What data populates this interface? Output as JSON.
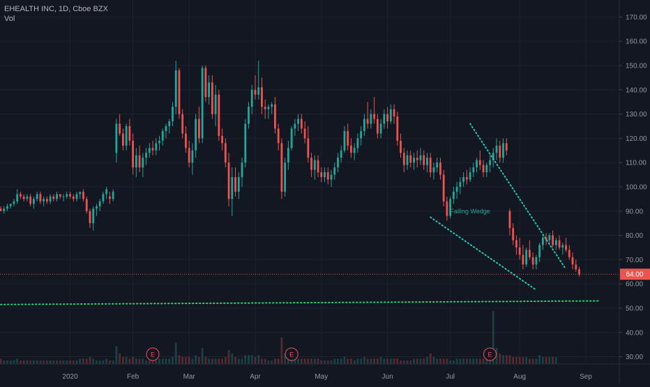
{
  "header": {
    "symbol_line": "EHEALTH INC, 1D, Cboe BZX",
    "volume_label": "Vol"
  },
  "colors": {
    "background": "#131722",
    "up": "#26a69a",
    "down": "#ef5350",
    "grid": "#1e222d",
    "support_line": "#2ecc71",
    "last_price_line": "#ef5350"
  },
  "chart_data": {
    "type": "candlestick",
    "y_axis": {
      "min": 27,
      "max": 177,
      "ticks": [
        30,
        40,
        50,
        60,
        70,
        80,
        90,
        100,
        110,
        120,
        130,
        140,
        150,
        160,
        170
      ],
      "suffix": ".00"
    },
    "x_axis": {
      "labels": [
        "2020",
        "Feb",
        "Mar",
        "Apr",
        "May",
        "Jun",
        "Jul",
        "Aug",
        "Sep"
      ],
      "label_day_index": [
        21,
        40,
        57,
        77,
        97,
        117,
        136,
        157,
        177
      ]
    },
    "candles": [
      [
        91,
        92,
        90,
        90
      ],
      [
        90,
        92,
        89,
        91
      ],
      [
        91,
        93,
        90,
        92
      ],
      [
        92,
        93,
        91,
        93
      ],
      [
        93,
        95,
        92,
        94
      ],
      [
        94,
        99,
        93,
        97
      ],
      [
        97,
        98,
        95,
        96
      ],
      [
        96,
        97,
        94,
        95
      ],
      [
        95,
        97,
        94,
        96
      ],
      [
        96,
        97,
        92,
        93
      ],
      [
        93,
        96,
        91,
        95
      ],
      [
        95,
        98,
        94,
        97
      ],
      [
        97,
        98,
        93,
        94
      ],
      [
        94,
        96,
        92,
        95
      ],
      [
        95,
        96,
        93,
        94
      ],
      [
        94,
        97,
        93,
        96
      ],
      [
        96,
        97,
        94,
        95
      ],
      [
        95,
        98,
        94,
        97
      ],
      [
        97,
        97,
        95,
        96
      ],
      [
        96,
        97,
        94,
        96
      ],
      [
        96,
        98,
        95,
        97
      ],
      [
        97,
        98,
        95,
        96
      ],
      [
        96,
        97,
        94,
        95
      ],
      [
        95,
        98,
        94,
        97
      ],
      [
        97,
        98,
        95,
        98
      ],
      [
        98,
        99,
        94,
        95
      ],
      [
        95,
        96,
        89,
        90
      ],
      [
        90,
        91,
        83,
        85
      ],
      [
        85,
        92,
        82,
        91
      ],
      [
        91,
        93,
        88,
        92
      ],
      [
        92,
        95,
        90,
        94
      ],
      [
        94,
        98,
        93,
        97
      ],
      [
        97,
        100,
        95,
        99
      ],
      [
        96,
        98,
        93,
        95
      ],
      [
        95,
        99,
        94,
        98
      ],
      [
        114,
        128,
        110,
        126
      ],
      [
        126,
        130,
        121,
        122
      ],
      [
        122,
        124,
        115,
        117
      ],
      [
        117,
        126,
        115,
        125
      ],
      [
        125,
        128,
        117,
        119
      ],
      [
        119,
        122,
        105,
        108
      ],
      [
        108,
        116,
        104,
        113
      ],
      [
        113,
        117,
        106,
        108
      ],
      [
        108,
        114,
        104,
        112
      ],
      [
        112,
        116,
        109,
        114
      ],
      [
        114,
        118,
        112,
        116
      ],
      [
        116,
        119,
        113,
        115
      ],
      [
        115,
        120,
        113,
        118
      ],
      [
        118,
        121,
        115,
        119
      ],
      [
        119,
        124,
        117,
        123
      ],
      [
        123,
        126,
        120,
        125
      ],
      [
        125,
        128,
        122,
        127
      ],
      [
        127,
        135,
        125,
        133
      ],
      [
        133,
        152,
        130,
        148
      ],
      [
        148,
        149,
        128,
        130
      ],
      [
        130,
        132,
        120,
        122
      ],
      [
        122,
        125,
        114,
        116
      ],
      [
        116,
        119,
        108,
        110
      ],
      [
        110,
        118,
        105,
        115
      ],
      [
        115,
        130,
        112,
        128
      ],
      [
        128,
        133,
        118,
        120
      ],
      [
        120,
        150,
        118,
        149
      ],
      [
        149,
        150,
        135,
        137
      ],
      [
        137,
        146,
        134,
        143
      ],
      [
        143,
        146,
        128,
        130
      ],
      [
        130,
        142,
        125,
        138
      ],
      [
        138,
        140,
        119,
        121
      ],
      [
        121,
        124,
        115,
        118
      ],
      [
        118,
        120,
        108,
        110
      ],
      [
        110,
        114,
        92,
        95
      ],
      [
        95,
        108,
        88,
        104
      ],
      [
        104,
        108,
        96,
        98
      ],
      [
        98,
        106,
        95,
        104
      ],
      [
        104,
        112,
        100,
        110
      ],
      [
        110,
        128,
        108,
        126
      ],
      [
        126,
        135,
        124,
        133
      ],
      [
        133,
        142,
        130,
        140
      ],
      [
        140,
        146,
        136,
        138
      ],
      [
        138,
        152,
        136,
        141
      ],
      [
        141,
        145,
        130,
        133
      ],
      [
        133,
        136,
        128,
        132
      ],
      [
        132,
        134,
        128,
        133
      ],
      [
        133,
        135,
        130,
        134
      ],
      [
        134,
        137,
        122,
        124
      ],
      [
        124,
        126,
        115,
        118
      ],
      [
        118,
        120,
        95,
        98
      ],
      [
        98,
        112,
        96,
        110
      ],
      [
        110,
        119,
        107,
        116
      ],
      [
        116,
        125,
        115,
        124
      ],
      [
        124,
        128,
        121,
        126
      ],
      [
        126,
        130,
        123,
        128
      ],
      [
        128,
        130,
        122,
        124
      ],
      [
        124,
        127,
        118,
        120
      ],
      [
        120,
        125,
        110,
        112
      ],
      [
        112,
        114,
        104,
        107
      ],
      [
        107,
        113,
        103,
        111
      ],
      [
        111,
        113,
        104,
        106
      ],
      [
        106,
        108,
        102,
        104
      ],
      [
        104,
        108,
        102,
        106
      ],
      [
        106,
        108,
        101,
        103
      ],
      [
        103,
        107,
        100,
        105
      ],
      [
        105,
        110,
        103,
        108
      ],
      [
        108,
        114,
        106,
        112
      ],
      [
        112,
        117,
        110,
        115
      ],
      [
        115,
        125,
        114,
        123
      ],
      [
        123,
        126,
        115,
        117
      ],
      [
        117,
        120,
        112,
        114
      ],
      [
        114,
        118,
        111,
        116
      ],
      [
        116,
        122,
        114,
        120
      ],
      [
        120,
        125,
        117,
        123
      ],
      [
        123,
        130,
        121,
        128
      ],
      [
        128,
        135,
        124,
        126
      ],
      [
        126,
        132,
        124,
        130
      ],
      [
        130,
        137,
        126,
        128
      ],
      [
        128,
        130,
        120,
        122
      ],
      [
        122,
        128,
        120,
        126
      ],
      [
        126,
        132,
        124,
        130
      ],
      [
        130,
        133,
        124,
        127
      ],
      [
        127,
        134,
        126,
        132
      ],
      [
        132,
        134,
        126,
        129
      ],
      [
        129,
        131,
        117,
        119
      ],
      [
        119,
        122,
        112,
        114
      ],
      [
        114,
        116,
        106,
        109
      ],
      [
        109,
        115,
        107,
        113
      ],
      [
        113,
        115,
        108,
        110
      ],
      [
        110,
        114,
        107,
        112
      ],
      [
        112,
        115,
        108,
        111
      ],
      [
        111,
        116,
        109,
        113
      ],
      [
        113,
        115,
        107,
        109
      ],
      [
        109,
        114,
        106,
        112
      ],
      [
        112,
        114,
        104,
        106
      ],
      [
        106,
        110,
        103,
        108
      ],
      [
        108,
        112,
        106,
        110
      ],
      [
        110,
        112,
        103,
        105
      ],
      [
        105,
        107,
        92,
        94
      ],
      [
        94,
        96,
        86,
        88
      ],
      [
        88,
        96,
        87,
        95
      ],
      [
        95,
        100,
        93,
        98
      ],
      [
        98,
        102,
        95,
        100
      ],
      [
        100,
        104,
        97,
        102
      ],
      [
        102,
        106,
        100,
        104
      ],
      [
        104,
        107,
        101,
        103
      ],
      [
        103,
        108,
        102,
        106
      ],
      [
        106,
        110,
        104,
        108
      ],
      [
        108,
        112,
        106,
        111
      ],
      [
        111,
        115,
        107,
        109
      ],
      [
        109,
        111,
        104,
        106
      ],
      [
        106,
        110,
        104,
        109
      ],
      [
        109,
        113,
        106,
        111
      ],
      [
        111,
        116,
        108,
        114
      ],
      [
        114,
        120,
        111,
        117
      ],
      [
        117,
        119,
        110,
        112
      ],
      [
        112,
        120,
        110,
        118
      ],
      [
        118,
        120,
        113,
        115
      ],
      [
        90,
        91,
        80,
        83
      ],
      [
        83,
        85,
        76,
        78
      ],
      [
        78,
        80,
        72,
        75
      ],
      [
        75,
        79,
        70,
        72
      ],
      [
        72,
        76,
        66,
        68
      ],
      [
        68,
        75,
        67,
        74
      ],
      [
        74,
        78,
        70,
        71
      ],
      [
        71,
        73,
        66,
        68
      ],
      [
        68,
        72,
        66,
        71
      ],
      [
        71,
        77,
        69,
        76
      ],
      [
        76,
        80,
        74,
        79
      ],
      [
        79,
        81,
        76,
        78
      ],
      [
        78,
        81,
        76,
        80
      ],
      [
        80,
        82,
        75,
        76
      ],
      [
        76,
        79,
        74,
        78
      ],
      [
        78,
        80,
        74,
        75
      ],
      [
        75,
        77,
        72,
        76
      ],
      [
        76,
        79,
        73,
        74
      ],
      [
        74,
        76,
        70,
        71
      ],
      [
        71,
        73,
        66,
        68
      ],
      [
        68,
        70,
        65,
        66
      ],
      [
        66,
        67,
        63,
        64
      ]
    ],
    "volume": [
      3,
      2,
      2,
      2,
      2,
      3,
      2,
      2,
      2,
      2,
      2,
      2,
      2,
      2,
      2,
      2,
      2,
      2,
      2,
      2,
      2,
      2,
      2,
      2,
      3,
      3,
      3,
      4,
      3,
      2,
      2,
      2,
      3,
      2,
      2,
      10,
      6,
      4,
      4,
      3,
      4,
      3,
      3,
      3,
      2,
      2,
      2,
      2,
      3,
      3,
      3,
      3,
      4,
      12,
      5,
      4,
      4,
      4,
      3,
      5,
      4,
      9,
      4,
      3,
      3,
      3,
      3,
      3,
      4,
      8,
      6,
      4,
      3,
      3,
      5,
      5,
      5,
      4,
      5,
      3,
      3,
      2,
      2,
      3,
      3,
      15,
      6,
      4,
      3,
      3,
      3,
      3,
      3,
      3,
      3,
      3,
      3,
      2,
      2,
      2,
      2,
      3,
      3,
      3,
      4,
      3,
      3,
      2,
      3,
      3,
      4,
      3,
      3,
      3,
      3,
      4,
      3,
      3,
      3,
      3,
      3,
      2,
      2,
      2,
      2,
      3,
      3,
      3,
      3,
      4,
      6,
      4,
      3,
      3,
      3,
      3,
      2,
      2,
      3,
      3,
      3,
      3,
      3,
      3,
      3,
      3,
      3,
      3,
      3,
      30,
      9,
      6,
      5,
      5,
      5,
      4,
      4,
      4,
      4,
      4,
      3,
      3,
      3,
      5,
      4,
      4,
      4,
      4,
      4
    ],
    "volume_max": 60,
    "last_price": 64,
    "last_price_label": "64.00",
    "support_line": {
      "from": [
        0,
        51.5
      ],
      "to": [
        181,
        53
      ]
    },
    "wedge_upper": {
      "from": [
        142,
        126
      ],
      "to": [
        171,
        66
      ]
    },
    "wedge_lower": {
      "from": [
        130,
        87.5
      ],
      "to": [
        162,
        57.5
      ]
    },
    "pattern_label": {
      "text": "Falling Wedge",
      "at": [
        142,
        89
      ]
    },
    "earnings_markers": [
      {
        "label": "E",
        "day": 46
      },
      {
        "label": "E",
        "day": 88
      },
      {
        "label": "E",
        "day": 148
      }
    ]
  }
}
